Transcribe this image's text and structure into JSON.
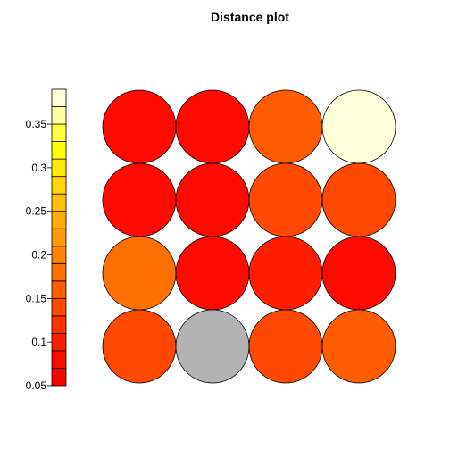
{
  "chart_data": {
    "type": "heatmap",
    "title": "Distance plot",
    "grid": {
      "rows": 4,
      "cols": 4
    },
    "cells": [
      {
        "row": 1,
        "col": 1,
        "value": 0.07
      },
      {
        "row": 1,
        "col": 2,
        "value": 0.07
      },
      {
        "row": 1,
        "col": 3,
        "value": 0.16
      },
      {
        "row": 1,
        "col": 4,
        "value": 0.39
      },
      {
        "row": 2,
        "col": 1,
        "value": 0.07
      },
      {
        "row": 2,
        "col": 2,
        "value": 0.07
      },
      {
        "row": 2,
        "col": 3,
        "value": 0.13
      },
      {
        "row": 2,
        "col": 4,
        "value": 0.13
      },
      {
        "row": 3,
        "col": 1,
        "value": 0.17
      },
      {
        "row": 3,
        "col": 2,
        "value": 0.07
      },
      {
        "row": 3,
        "col": 3,
        "value": 0.1
      },
      {
        "row": 3,
        "col": 4,
        "value": 0.09
      },
      {
        "row": 4,
        "col": 1,
        "value": 0.15
      },
      {
        "row": 4,
        "col": 2,
        "value": null
      },
      {
        "row": 4,
        "col": 3,
        "value": 0.13
      },
      {
        "row": 4,
        "col": 4,
        "value": 0.16
      }
    ],
    "missing_color": "#B3B3B3",
    "colorbar": {
      "min": 0.05,
      "max": 0.39,
      "ticks": [
        0.05,
        0.1,
        0.15,
        0.2,
        0.25,
        0.3,
        0.35
      ],
      "tick_labels": [
        "0.05",
        "0.1",
        "0.15",
        "0.2",
        "0.25",
        "0.3",
        "0.35"
      ],
      "palette": [
        "#FF0000",
        "#FF0A00",
        "#FF1F00",
        "#FF3300",
        "#FF4800",
        "#FF5C00",
        "#FF7000",
        "#FF8500",
        "#FF9900",
        "#FFAD00",
        "#FFC200",
        "#FFD600",
        "#FFEB00",
        "#FFFF00",
        "#FFFF40",
        "#FFFF9F",
        "#FFFFD9"
      ]
    }
  }
}
